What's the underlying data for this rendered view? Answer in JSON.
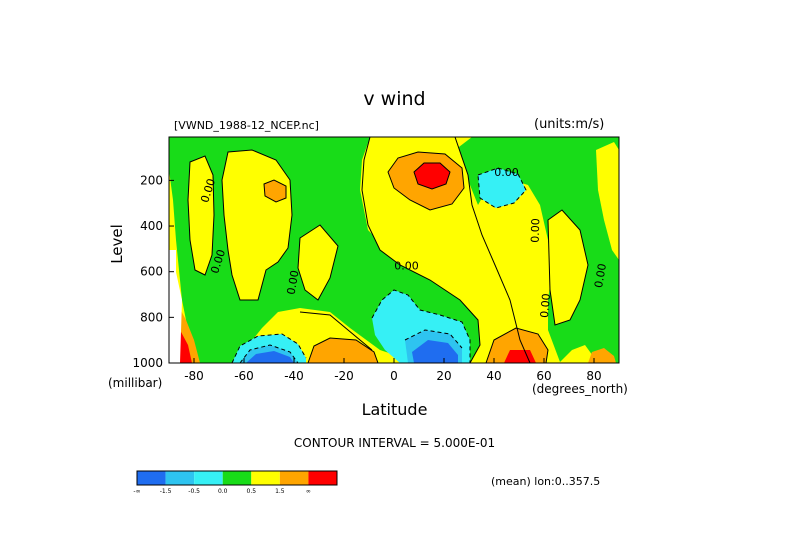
{
  "chart_data": {
    "type": "heatmap",
    "subtype": "filled-contour",
    "title": "v wind",
    "dataset": "[VWND_1988-12_NCEP.nc]",
    "units": "(units:m/s)",
    "xlabel": "Latitude",
    "x_units": "(degrees_north)",
    "ylabel": "Level",
    "y_units": "(millibar)",
    "xlim": [
      -90,
      90
    ],
    "ylim": [
      1000,
      10
    ],
    "x_ticks": [
      -80,
      -60,
      -40,
      -20,
      0,
      20,
      40,
      60,
      80
    ],
    "x_tick_labels": [
      "-80",
      "-60",
      "-40",
      "-20",
      "0",
      "20",
      "40",
      "60",
      "80"
    ],
    "y_ticks": [
      200,
      400,
      600,
      800,
      1000
    ],
    "y_tick_labels": [
      "200",
      "400",
      "600",
      "800",
      "1000"
    ],
    "contour_interval": "CONTOUR INTERVAL = 5.000E-01",
    "contour_labels": [
      "0.00",
      "0.00",
      "0.00",
      "0.00",
      "0.00",
      "0.00",
      "0.00",
      "0.00"
    ],
    "footer": "(mean) lon:0..357.5",
    "colorbar": {
      "colors": [
        "#1f6df0",
        "#2ec4f0",
        "#36f0f5",
        "#18dc18",
        "#ffff00",
        "#ffa500",
        "#ff0000"
      ],
      "labels": [
        "-∞",
        "-1.5",
        "-0.5",
        "0.0",
        "0.5",
        "1.5",
        "∞"
      ]
    },
    "features": [
      {
        "kind": "max",
        "lat": 15,
        "level": 150,
        "value": 1.5
      },
      {
        "kind": "min",
        "lat": 47,
        "level": 200,
        "value": -0.5
      },
      {
        "kind": "max",
        "lat": -52,
        "level": 230,
        "value": 0.5
      },
      {
        "kind": "min",
        "lat": 0,
        "level": 800,
        "value": -0.5
      },
      {
        "kind": "min",
        "lat": 12,
        "level": 960,
        "value": -1.5
      },
      {
        "kind": "min",
        "lat": -52,
        "level": 985,
        "value": -1.5
      },
      {
        "kind": "max",
        "lat": 52,
        "level": 990,
        "value": 1.5
      },
      {
        "kind": "max",
        "lat": -20,
        "level": 990,
        "value": 1.0
      },
      {
        "kind": "max",
        "lat": 84,
        "level": 990,
        "value": 1.0
      },
      {
        "kind": "max",
        "lat": -83,
        "level": 980,
        "value": 1.5
      }
    ]
  }
}
